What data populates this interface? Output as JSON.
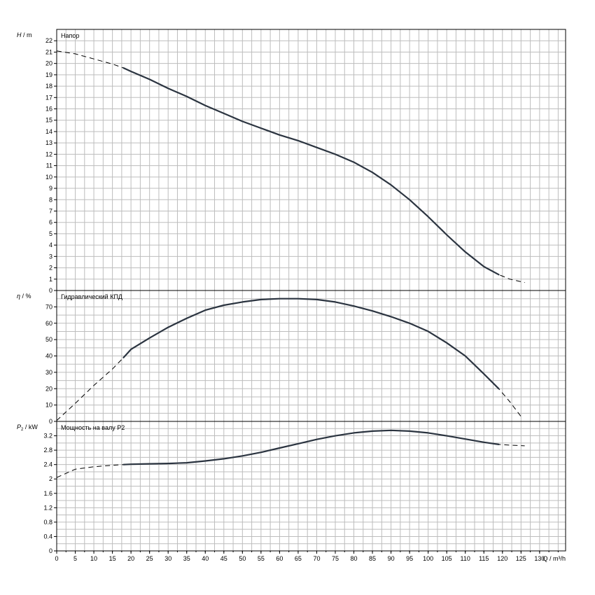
{
  "chart_data": [
    {
      "type": "line",
      "panel": "head",
      "title": "Напор",
      "ylabel_symbol": "H",
      "ylabel_unit": "/ m",
      "ylim": [
        0,
        23
      ],
      "yticks": [
        0,
        1,
        2,
        3,
        4,
        5,
        6,
        7,
        8,
        9,
        10,
        11,
        12,
        13,
        14,
        15,
        16,
        17,
        18,
        19,
        20,
        21,
        22
      ],
      "series": [
        {
          "x": [
            0,
            5,
            10,
            15,
            18,
            20,
            25,
            30,
            35,
            40,
            45,
            50,
            55,
            60,
            65,
            70,
            75,
            80,
            85,
            90,
            95,
            100,
            105,
            110,
            115,
            119,
            122,
            126
          ],
          "y": [
            21.1,
            20.85,
            20.4,
            19.95,
            19.6,
            19.3,
            18.6,
            17.8,
            17.1,
            16.3,
            15.6,
            14.9,
            14.3,
            13.7,
            13.2,
            12.6,
            12.0,
            11.3,
            10.4,
            9.3,
            8.0,
            6.5,
            4.9,
            3.4,
            2.1,
            1.4,
            1.0,
            0.7
          ],
          "solid_range": [
            18,
            119
          ]
        }
      ]
    },
    {
      "type": "line",
      "panel": "efficiency",
      "title": "Гидравлический КПД",
      "ylabel_symbol": "η",
      "ylabel_unit": "/ %",
      "ylim": [
        0,
        80
      ],
      "yticks": [
        0,
        10,
        20,
        30,
        40,
        50,
        60,
        70
      ],
      "series": [
        {
          "x": [
            0,
            5,
            10,
            15,
            18,
            20,
            25,
            30,
            35,
            40,
            45,
            50,
            55,
            60,
            65,
            70,
            75,
            80,
            85,
            90,
            95,
            100,
            105,
            110,
            115,
            119,
            122,
            125
          ],
          "y": [
            0.5,
            11,
            22,
            32,
            39,
            44,
            51,
            57.5,
            63,
            68,
            71,
            73,
            74.5,
            75,
            75,
            74.5,
            73,
            70.5,
            67.5,
            64,
            60,
            55,
            48,
            40,
            29,
            20,
            12,
            3
          ],
          "solid_range": [
            18,
            119
          ]
        }
      ]
    },
    {
      "type": "line",
      "panel": "power",
      "title": "Мощность на валу P2",
      "ylabel_symbol": "P",
      "ylabel_sub": "2",
      "ylabel_unit": "/ kW",
      "ylim": [
        0,
        3.6
      ],
      "yticks": [
        "0",
        "0.4",
        "0.8",
        "1.2",
        "1.6",
        "2",
        "2.4",
        "2.8",
        "3.2"
      ],
      "series": [
        {
          "x": [
            0,
            5,
            10,
            15,
            18,
            20,
            25,
            30,
            35,
            40,
            45,
            50,
            55,
            60,
            65,
            70,
            75,
            80,
            85,
            90,
            95,
            100,
            105,
            110,
            115,
            119,
            122,
            126
          ],
          "y": [
            2.04,
            2.27,
            2.34,
            2.38,
            2.4,
            2.41,
            2.42,
            2.43,
            2.45,
            2.5,
            2.56,
            2.64,
            2.74,
            2.86,
            2.98,
            3.1,
            3.2,
            3.28,
            3.33,
            3.35,
            3.33,
            3.28,
            3.2,
            3.11,
            3.02,
            2.96,
            2.94,
            2.92
          ],
          "solid_range": [
            18,
            119
          ]
        }
      ]
    }
  ],
  "x_axis": {
    "label": "Q / m³/h",
    "xlim": [
      0,
      137
    ],
    "ticks": [
      0,
      5,
      10,
      15,
      20,
      25,
      30,
      35,
      40,
      45,
      50,
      55,
      60,
      65,
      70,
      75,
      80,
      85,
      90,
      95,
      100,
      105,
      110,
      115,
      120,
      125,
      130
    ]
  }
}
